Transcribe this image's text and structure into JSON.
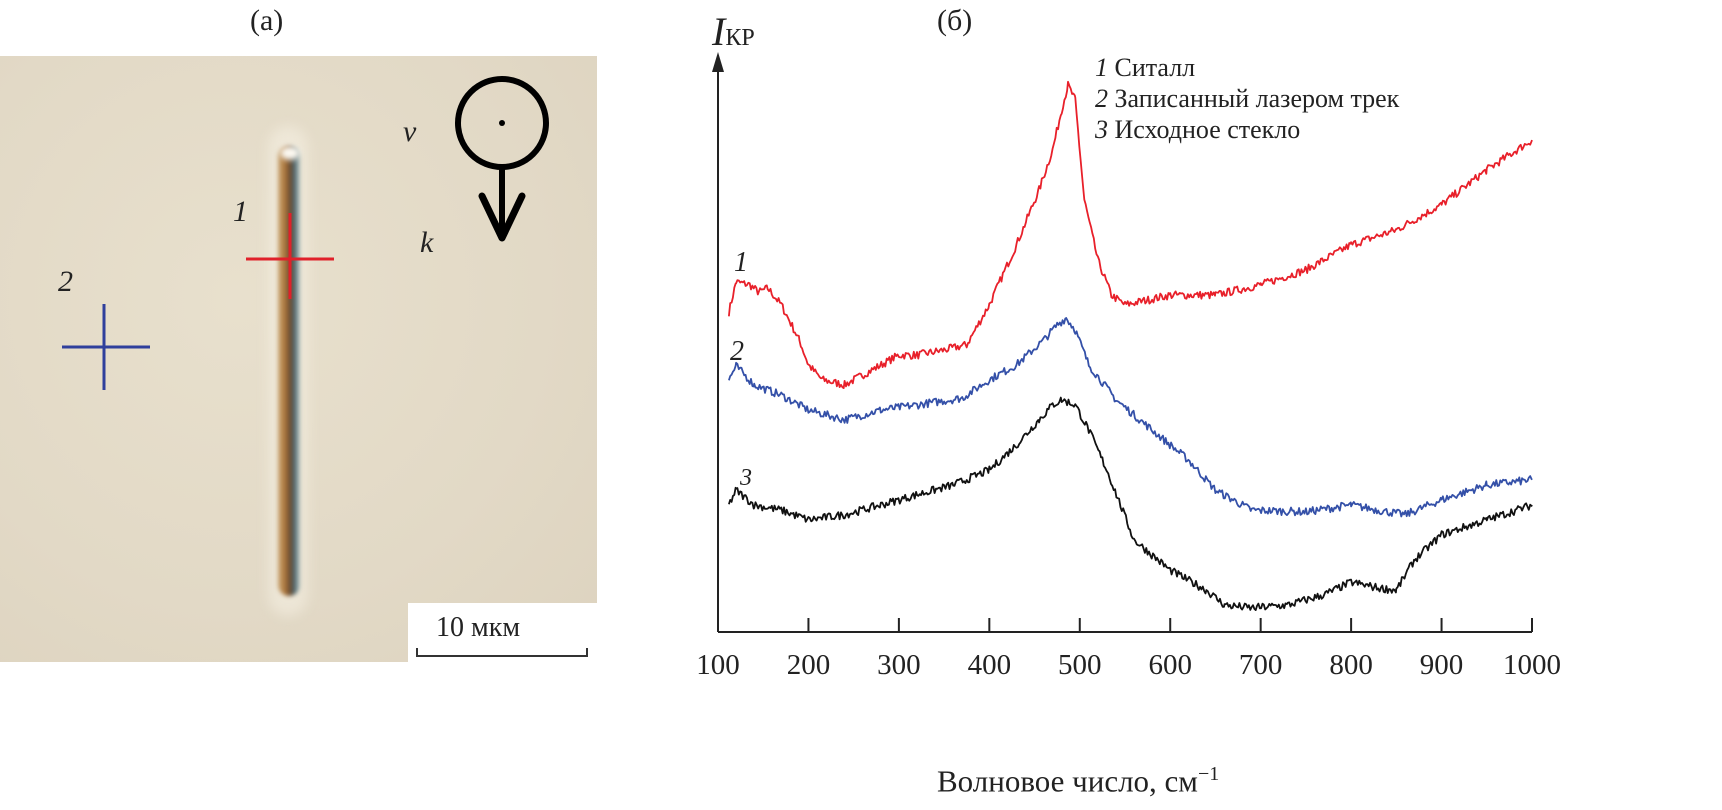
{
  "panel_a": {
    "label": "(а)",
    "marker_1_label": "1",
    "marker_2_label": "2",
    "marker_1_color": "#e0202a",
    "marker_2_color": "#2f3f9c",
    "v_label": "v",
    "k_label": "k",
    "scale_bar_label": "10 мкм"
  },
  "chart_data": {
    "type": "line",
    "title": "(б)",
    "ylabel_main": "I",
    "ylabel_sub": "КР",
    "xlabel": "Волновое число, см",
    "xlabel_sup": "−1",
    "xlim": [
      100,
      1000
    ],
    "ylim": [
      0,
      100
    ],
    "y_units": "arbitrary (no ticks)",
    "xticks": [
      100,
      200,
      300,
      400,
      500,
      600,
      700,
      800,
      900,
      1000
    ],
    "xtick_labels": [
      "100",
      "200",
      "300",
      "400",
      "500",
      "600",
      "700",
      "800",
      "900",
      "1000"
    ],
    "grid": false,
    "legend": [
      {
        "num": "1",
        "text": "Ситалл"
      },
      {
        "num": "2",
        "text": "Записанный лазером трек"
      },
      {
        "num": "3",
        "text": "Исходное стекло"
      }
    ],
    "legend_placement": "top-center",
    "series": [
      {
        "name": "1",
        "color": "#e8202a",
        "x": [
          112,
          120,
          135,
          145,
          155,
          170,
          190,
          200,
          215,
          240,
          270,
          300,
          320,
          350,
          375,
          400,
          430,
          455,
          470,
          480,
          487,
          495,
          505,
          520,
          535,
          550,
          600,
          650,
          700,
          750,
          800,
          850,
          900,
          950,
          1000
        ],
        "y": [
          55.9,
          61.2,
          60.7,
          59.4,
          60.1,
          57.2,
          51.0,
          46.7,
          44.1,
          43.2,
          45.8,
          48.4,
          48.4,
          49.3,
          50.2,
          57.2,
          67.7,
          77.3,
          84.3,
          91.3,
          95.6,
          93.0,
          75.5,
          65.0,
          58.9,
          57.2,
          58.9,
          58.9,
          60.7,
          63.3,
          67.7,
          70.3,
          74.7,
          80.8,
          86.0
        ]
      },
      {
        "name": "2",
        "color": "#3450a8",
        "x": [
          112,
          120,
          140,
          170,
          200,
          240,
          280,
          320,
          370,
          400,
          430,
          460,
          475,
          485,
          495,
          510,
          540,
          580,
          620,
          650,
          690,
          750,
          800,
          830,
          860,
          900,
          950,
          1000
        ],
        "y": [
          44.1,
          46.5,
          43.2,
          41.4,
          38.8,
          37.1,
          38.8,
          39.7,
          40.9,
          44.1,
          46.7,
          51.0,
          53.7,
          54.9,
          52.8,
          46.7,
          40.6,
          35.3,
          30.1,
          24.8,
          21.3,
          21.0,
          22.2,
          21.3,
          20.5,
          23.1,
          25.7,
          26.6
        ]
      },
      {
        "name": "3",
        "color": "#111111",
        "x": [
          112,
          120,
          140,
          170,
          200,
          240,
          280,
          320,
          360,
          400,
          430,
          455,
          470,
          480,
          495,
          510,
          530,
          560,
          600,
          640,
          660,
          690,
          730,
          770,
          800,
          830,
          850,
          870,
          900,
          950,
          1000
        ],
        "y": [
          22.2,
          24.8,
          22.2,
          21.3,
          19.6,
          20.5,
          22.2,
          24.0,
          25.7,
          28.3,
          32.7,
          37.1,
          39.7,
          40.6,
          39.7,
          35.3,
          28.3,
          16.1,
          10.8,
          7.3,
          4.7,
          4.2,
          4.7,
          6.5,
          8.7,
          7.7,
          7.3,
          12.6,
          17.0,
          19.6,
          22.2
        ]
      }
    ],
    "curve_labels": [
      "1",
      "2",
      "3"
    ]
  }
}
